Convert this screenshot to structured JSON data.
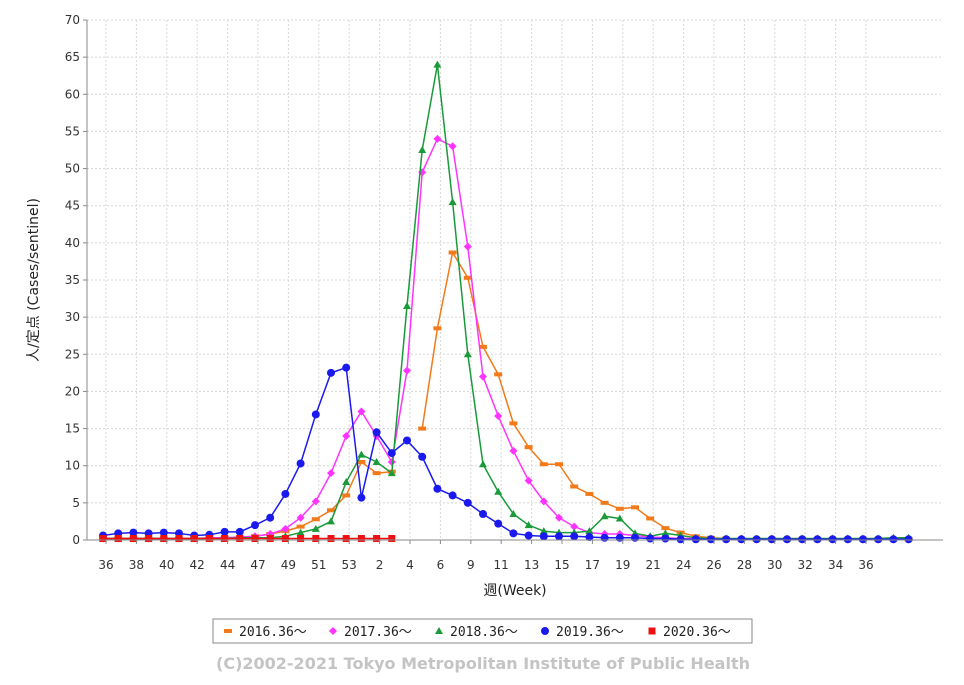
{
  "chart_data": {
    "type": "line",
    "xlabel": "週(Week)",
    "ylabel": "人/定点 (Cases/sentinel)",
    "ylim": [
      0,
      70
    ],
    "yticks": [
      0,
      5,
      10,
      15,
      20,
      25,
      30,
      35,
      40,
      45,
      50,
      55,
      60,
      65,
      70
    ],
    "x_tick_labels": [
      "36",
      "38",
      "40",
      "42",
      "44",
      "47",
      "49",
      "51",
      "53",
      "2",
      "4",
      "6",
      "9",
      "11",
      "13",
      "15",
      "17",
      "19",
      "21",
      "24",
      "26",
      "28",
      "30",
      "32",
      "34",
      "36"
    ],
    "grid": true,
    "legend_position": "bottom",
    "copyright": "(C)2002-2021 Tokyo Metropolitan Institute of Public Health",
    "series": [
      {
        "name": "2016.36～",
        "color": "#f27a1a",
        "marker": "rect",
        "values": [
          0.2,
          0.2,
          0.2,
          0.2,
          0.2,
          0.2,
          0.2,
          0.2,
          0.3,
          0.3,
          0.5,
          0.8,
          1.2,
          1.8,
          2.8,
          4.0,
          6.0,
          10.5,
          9.0,
          9.2,
          null,
          15.0,
          28.5,
          38.7,
          35.3,
          26.0,
          22.3,
          15.7,
          12.5,
          10.2,
          10.2,
          7.2,
          6.2,
          5.0,
          4.2,
          4.4,
          2.9,
          1.6,
          1.0,
          0.5,
          0.3,
          0.2,
          0.1,
          0.1,
          0.1,
          0.1,
          0.1,
          0.1,
          0.1,
          0.1,
          0.1,
          0.1,
          0.1,
          0.1
        ]
      },
      {
        "name": "2017.36～",
        "color": "#ff33ff",
        "marker": "diamond",
        "values": [
          0.2,
          0.2,
          0.2,
          0.2,
          0.2,
          0.2,
          0.2,
          0.3,
          0.3,
          0.4,
          0.5,
          0.8,
          1.5,
          3.0,
          5.2,
          9.0,
          14.0,
          17.3,
          14.0,
          10.5,
          22.8,
          49.5,
          54.0,
          53.0,
          39.5,
          22.0,
          16.7,
          12.0,
          8.0,
          5.2,
          3.0,
          1.8,
          1.0,
          0.8,
          0.8,
          0.6,
          0.4,
          0.3,
          0.2,
          0.2,
          0.1,
          0.1,
          0.1,
          0.1,
          0.1,
          0.1,
          0.1,
          0.1,
          0.1,
          0.1,
          0.1,
          0.1,
          0.1,
          0.1
        ]
      },
      {
        "name": "2018.36～",
        "color": "#1a9a3a",
        "marker": "triangle",
        "values": [
          0.2,
          0.2,
          0.2,
          0.2,
          0.2,
          0.2,
          0.2,
          0.2,
          0.2,
          0.3,
          0.3,
          0.3,
          0.5,
          1.0,
          1.5,
          2.5,
          7.8,
          11.5,
          10.5,
          9.0,
          31.5,
          52.5,
          64.0,
          45.5,
          25.0,
          10.2,
          6.5,
          3.5,
          2.0,
          1.2,
          1.0,
          1.0,
          1.2,
          3.2,
          2.9,
          0.9,
          0.5,
          0.9,
          0.6,
          0.3,
          0.2,
          0.2,
          0.2,
          0.2,
          0.2,
          0.2,
          0.2,
          0.2,
          0.2,
          0.2,
          0.2,
          0.2,
          0.3,
          0.3
        ]
      },
      {
        "name": "2019.36～",
        "color": "#1a1aee",
        "marker": "circle",
        "values": [
          0.6,
          0.9,
          1.0,
          0.9,
          1.0,
          0.9,
          0.6,
          0.7,
          1.1,
          1.1,
          2.0,
          3.0,
          6.2,
          10.3,
          16.9,
          22.5,
          23.2,
          5.7,
          14.5,
          11.7,
          13.4,
          11.2,
          6.9,
          6.0,
          5.0,
          3.5,
          2.2,
          0.9,
          0.6,
          0.5,
          0.5,
          0.5,
          0.4,
          0.3,
          0.3,
          0.3,
          0.2,
          0.2,
          0.1,
          0.1,
          0.1,
          0.1,
          0.1,
          0.1,
          0.1,
          0.1,
          0.1,
          0.1,
          0.1,
          0.1,
          0.1,
          0.1,
          0.1,
          0.1
        ]
      },
      {
        "name": "2020.36～",
        "color": "#ee1111",
        "marker": "square",
        "values": [
          0.2,
          0.2,
          0.2,
          0.2,
          0.2,
          0.2,
          0.2,
          0.2,
          0.2,
          0.2,
          0.2,
          0.2,
          0.2,
          0.2,
          0.2,
          0.2,
          0.2,
          0.2,
          0.2,
          0.2
        ]
      }
    ]
  }
}
